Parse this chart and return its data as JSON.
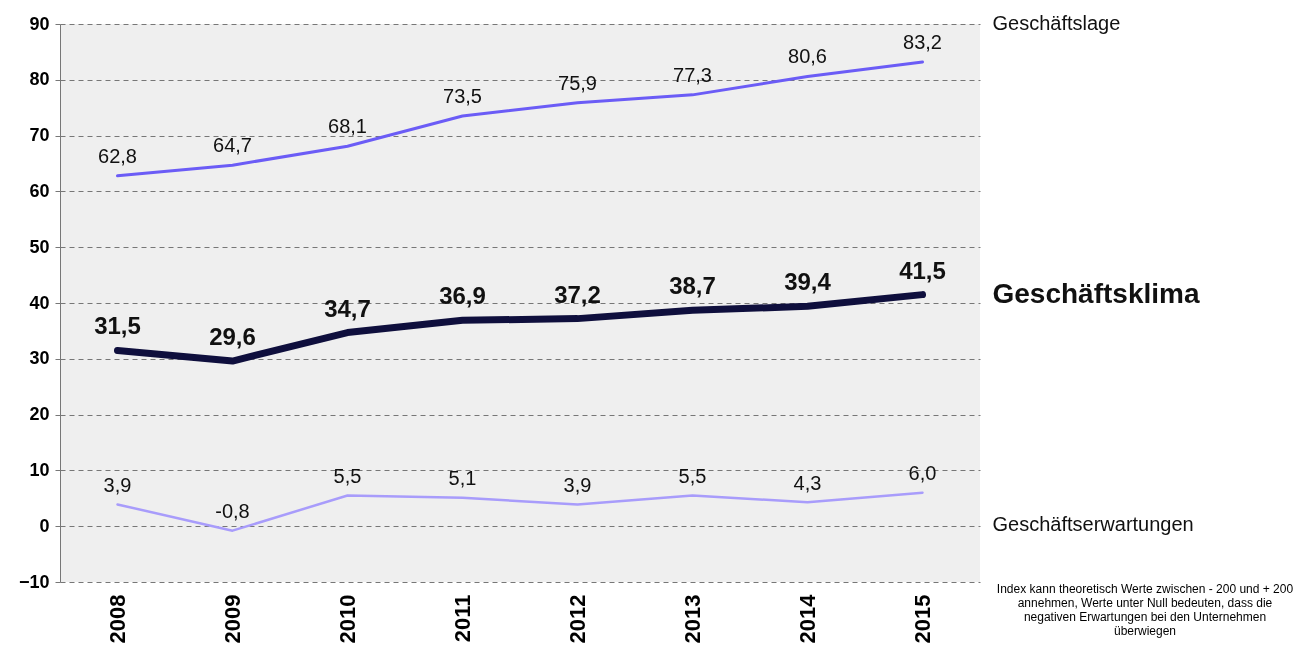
{
  "chart_data": {
    "type": "line",
    "categories": [
      "2008",
      "2009",
      "2010",
      "2011",
      "2012",
      "2013",
      "2014",
      "2015"
    ],
    "series": [
      {
        "name": "Geschäftslage",
        "color": "#6b5cf6",
        "values": [
          62.8,
          64.7,
          68.1,
          73.5,
          75.9,
          77.3,
          80.6,
          83.2
        ],
        "value_labels": [
          "62,8",
          "64,7",
          "68,1",
          "73,5",
          "75,9",
          "77,3",
          "80,6",
          "83,2"
        ]
      },
      {
        "name": "Geschäftsklima",
        "color": "#0f0f3d",
        "values": [
          31.5,
          29.6,
          34.7,
          36.9,
          37.2,
          38.7,
          39.4,
          41.5
        ],
        "value_labels": [
          "31,5",
          "29,6",
          "34,7",
          "36,9",
          "37,2",
          "38,7",
          "39,4",
          "41,5"
        ]
      },
      {
        "name": "Geschäftserwartungen",
        "color": "#a89cfb",
        "values": [
          3.9,
          -0.8,
          5.5,
          5.1,
          3.9,
          5.5,
          4.3,
          6.0
        ],
        "value_labels": [
          "3,9",
          "-0,8",
          "5,5",
          "5,1",
          "3,9",
          "5,5",
          "4,3",
          "6,0"
        ]
      }
    ],
    "ylim": [
      -10,
      90
    ],
    "yticks": [
      -10,
      0,
      10,
      20,
      30,
      40,
      50,
      60,
      70,
      80,
      90
    ],
    "grid": "y",
    "marker": "none",
    "line_style": "solid",
    "annotations": [
      "Index kann theoretisch Werte zwischen - 200 und + 200 annehmen, Werte unter Null bedeuten, dass die negativen Erwartungen bei den Unternehmen überwiegen"
    ]
  }
}
